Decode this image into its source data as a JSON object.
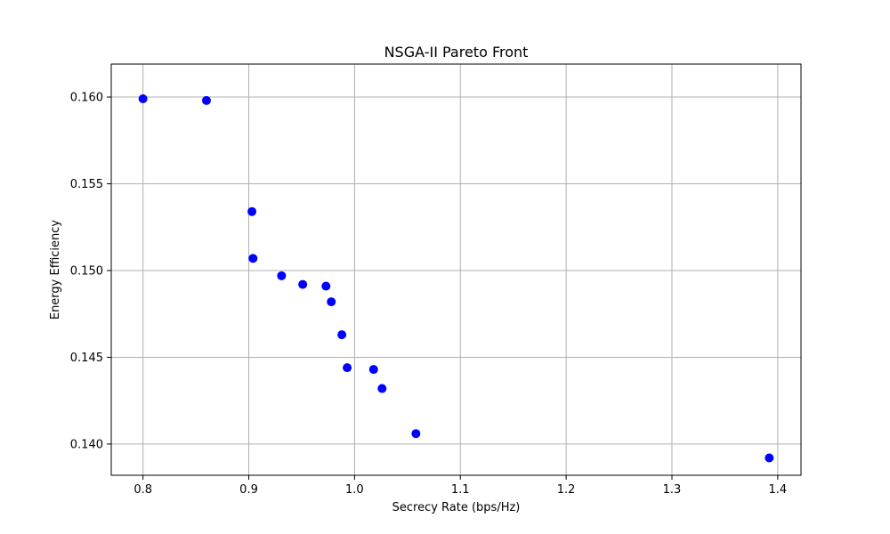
{
  "chart_data": {
    "type": "scatter",
    "title": "NSGA-II Pareto Front",
    "xlabel": "Secrecy Rate (bps/Hz)",
    "ylabel": "Energy Efficiency",
    "xlim": [
      0.77,
      1.422
    ],
    "ylim": [
      0.1382,
      0.1619
    ],
    "xticks": [
      0.8,
      0.9,
      1.0,
      1.1,
      1.2,
      1.3,
      1.4
    ],
    "xtick_labels": [
      "0.8",
      "0.9",
      "1.0",
      "1.1",
      "1.2",
      "1.3",
      "1.4"
    ],
    "yticks": [
      0.14,
      0.145,
      0.15,
      0.155,
      0.16
    ],
    "ytick_labels": [
      "0.140",
      "0.145",
      "0.150",
      "0.155",
      "0.160"
    ],
    "grid": true,
    "marker_color": "#0000ff",
    "points": [
      {
        "x": 0.8,
        "y": 0.1599
      },
      {
        "x": 0.86,
        "y": 0.1598
      },
      {
        "x": 0.903,
        "y": 0.1534
      },
      {
        "x": 0.904,
        "y": 0.1507
      },
      {
        "x": 0.931,
        "y": 0.1497
      },
      {
        "x": 0.951,
        "y": 0.1492
      },
      {
        "x": 0.973,
        "y": 0.1491
      },
      {
        "x": 0.978,
        "y": 0.1482
      },
      {
        "x": 0.988,
        "y": 0.1463
      },
      {
        "x": 0.993,
        "y": 0.1444
      },
      {
        "x": 1.018,
        "y": 0.1443
      },
      {
        "x": 1.026,
        "y": 0.1432
      },
      {
        "x": 1.058,
        "y": 0.1406
      },
      {
        "x": 1.392,
        "y": 0.1392
      }
    ]
  }
}
